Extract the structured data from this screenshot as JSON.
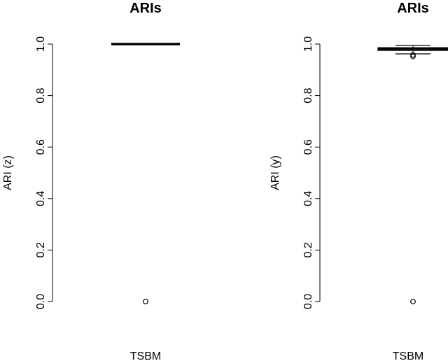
{
  "chart_data": [
    {
      "type": "boxplot",
      "title": "ARIs",
      "ylabel": "ARI (z)",
      "xlabel": "",
      "categories": [
        "TSBM"
      ],
      "ylim": [
        0,
        1
      ],
      "yticks": [
        "0.0",
        "0.2",
        "0.4",
        "0.6",
        "0.8",
        "1.0"
      ],
      "boxes": [
        {
          "category": "TSBM",
          "min": 1.0,
          "q1": 1.0,
          "median": 1.0,
          "q3": 1.0,
          "max": 1.0,
          "outliers": [
            0.0
          ]
        }
      ]
    },
    {
      "type": "boxplot",
      "title": "ARIs",
      "ylabel": "ARI (y)",
      "xlabel": "",
      "categories": [
        "TSBM"
      ],
      "ylim": [
        0,
        1
      ],
      "yticks": [
        "0.0",
        "0.2",
        "0.4",
        "0.6",
        "0.8",
        "1.0"
      ],
      "boxes": [
        {
          "category": "TSBM",
          "min": 0.962,
          "q1": 0.975,
          "median": 0.982,
          "q3": 0.986,
          "max": 0.995,
          "outliers": [
            0.958,
            0.952,
            0.0
          ]
        }
      ]
    }
  ]
}
